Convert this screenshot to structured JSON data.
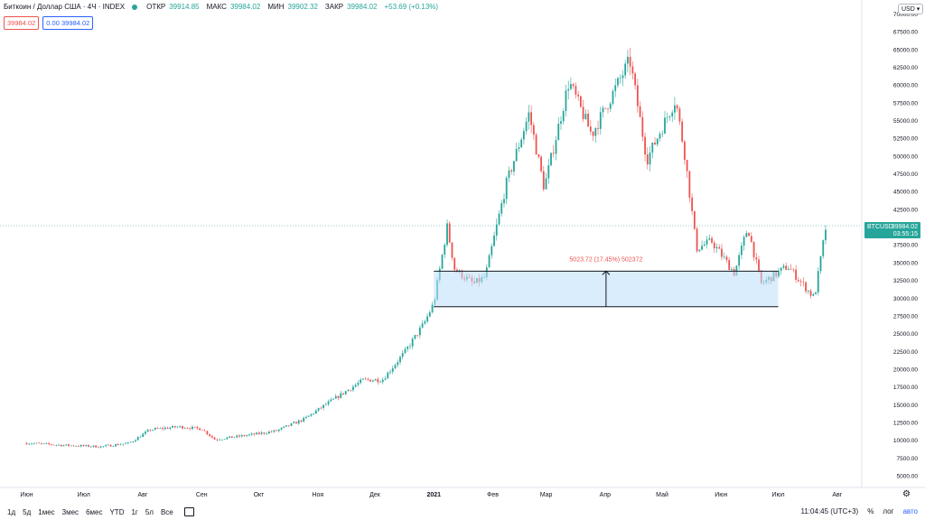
{
  "legend": {
    "symbol": "Биткоин / Доллар США · 4Ч · INDEX",
    "open_label": "ОТКР",
    "open": "39914.85",
    "high_label": "МАКС",
    "high": "39984.02",
    "low_label": "МИН",
    "low": "39902.32",
    "close_label": "ЗАКР",
    "close": "39984.02",
    "change": "+53.69 (+0.13%)"
  },
  "inputs": {
    "box1": "39984.02",
    "box2": "0.00",
    "box3": "39984.02"
  },
  "currency": "USD ▾",
  "price_tag": {
    "symbol": "BTCUSD",
    "price": "39984.02",
    "countdown": "03:55:15"
  },
  "measure_label": "5023.72 (17.45%) 502372",
  "bottom": {
    "timeframes": [
      "1д",
      "5д",
      "1мес",
      "3мес",
      "6мес",
      "YTD",
      "1г",
      "5л",
      "Все"
    ],
    "time": "11:04:45 (UTC+3)",
    "percent": "%",
    "log": "лог",
    "auto": "авто"
  },
  "colors": {
    "up": "#26a69a",
    "down": "#ef5350",
    "range_fill": "#bbdefb",
    "label": "#ef5350"
  },
  "chart_data": {
    "type": "candlestick",
    "series": [
      {
        "name": "BTCUSD",
        "x": [
          "2020-06",
          "2020-07",
          "2020-08",
          "2020-09",
          "2020-10",
          "2020-11",
          "2020-12",
          "2021-01",
          "2021-02",
          "2021-03",
          "2021-04",
          "2021-05",
          "2021-06",
          "2021-07"
        ],
        "values": [
          9600,
          9300,
          11700,
          10600,
          11500,
          15500,
          24000,
          34000,
          47000,
          58000,
          58000,
          37000,
          34000,
          37500
        ]
      }
    ],
    "anchors": [
      {
        "x": "2020-06-01",
        "y": 9600
      },
      {
        "x": "2020-06-20",
        "y": 9300
      },
      {
        "x": "2020-07-10",
        "y": 9100
      },
      {
        "x": "2020-07-25",
        "y": 9600
      },
      {
        "x": "2020-08-05",
        "y": 11500
      },
      {
        "x": "2020-08-20",
        "y": 11900
      },
      {
        "x": "2020-09-01",
        "y": 11600
      },
      {
        "x": "2020-09-08",
        "y": 10100
      },
      {
        "x": "2020-09-25",
        "y": 10700
      },
      {
        "x": "2020-10-10",
        "y": 11300
      },
      {
        "x": "2020-10-25",
        "y": 13000
      },
      {
        "x": "2020-11-05",
        "y": 15000
      },
      {
        "x": "2020-11-25",
        "y": 18500
      },
      {
        "x": "2020-12-05",
        "y": 18500
      },
      {
        "x": "2020-12-17",
        "y": 22500
      },
      {
        "x": "2020-12-27",
        "y": 26500
      },
      {
        "x": "2021-01-01",
        "y": 29300
      },
      {
        "x": "2021-01-08",
        "y": 40000
      },
      {
        "x": "2021-01-12",
        "y": 34000
      },
      {
        "x": "2021-01-22",
        "y": 32000
      },
      {
        "x": "2021-01-28",
        "y": 33000
      },
      {
        "x": "2021-02-08",
        "y": 46000
      },
      {
        "x": "2021-02-20",
        "y": 56000
      },
      {
        "x": "2021-02-28",
        "y": 45500
      },
      {
        "x": "2021-03-13",
        "y": 60500
      },
      {
        "x": "2021-03-25",
        "y": 53000
      },
      {
        "x": "2021-04-14",
        "y": 63500
      },
      {
        "x": "2021-04-23",
        "y": 49500
      },
      {
        "x": "2021-05-08",
        "y": 58000
      },
      {
        "x": "2021-05-13",
        "y": 50000
      },
      {
        "x": "2021-05-19",
        "y": 37000
      },
      {
        "x": "2021-05-27",
        "y": 38000
      },
      {
        "x": "2021-06-08",
        "y": 33500
      },
      {
        "x": "2021-06-15",
        "y": 40000
      },
      {
        "x": "2021-06-22",
        "y": 32000
      },
      {
        "x": "2021-07-06",
        "y": 34500
      },
      {
        "x": "2021-07-20",
        "y": 30000
      },
      {
        "x": "2021-07-26",
        "y": 39984
      }
    ],
    "measure": {
      "x_from": "2021-01-01",
      "x_to": "2021-07-01",
      "y_from": 28800,
      "y_to": 33800
    },
    "ylim": [
      2000,
      70000
    ],
    "y_ticks": [
      5000,
      7500,
      10000,
      12500,
      15000,
      17500,
      20000,
      22500,
      25000,
      27500,
      30000,
      32500,
      35000,
      37500,
      40000,
      42500,
      45000,
      47500,
      50000,
      52500,
      55000,
      57500,
      60000,
      62500,
      65000,
      67500,
      70000
    ],
    "y_tick_labels": [
      "5000.00",
      "7500.00",
      "10000.00",
      "12500.00",
      "15000.00",
      "17500.00",
      "20000.00",
      "22500.00",
      "25000.00",
      "27500.00",
      "30000.00",
      "32500.00",
      "35000.00",
      "37500.00",
      "40000.00",
      "42500.00",
      "45000.00",
      "47500.00",
      "50000.00",
      "52500.00",
      "55000.00",
      "57500.00",
      "60000.00",
      "62500.00",
      "65000.00",
      "67500.00",
      "70000.00"
    ],
    "x_tick_labels": [
      "Июн",
      "Июл",
      "Авг",
      "Сен",
      "Окт",
      "Ноя",
      "Дек",
      "2021",
      "Фев",
      "Мар",
      "Апр",
      "Май",
      "Июн",
      "Июл",
      "Авг"
    ],
    "last_price": 39984.02,
    "grid": false
  }
}
